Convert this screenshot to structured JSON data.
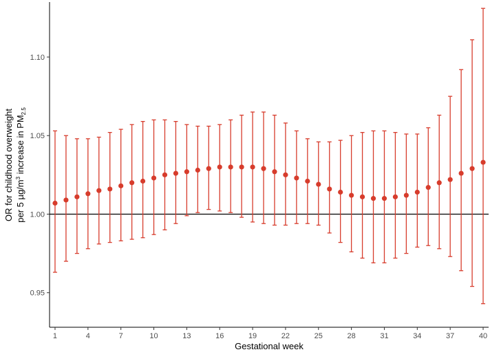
{
  "chart_data": {
    "type": "scatter",
    "title": "",
    "xlabel": "Gestational week",
    "ylabel_line1": "OR for childhood overweight",
    "ylabel_line2": {
      "prefix": "per 5 µg/m",
      "sup": "3",
      "middle": " increase in PM",
      "sub": "2.5"
    },
    "xlim": [
      0.5,
      40.5
    ],
    "ylim": [
      0.928,
      1.135
    ],
    "x_ticks": [
      1,
      4,
      7,
      10,
      13,
      16,
      19,
      22,
      25,
      28,
      31,
      34,
      37,
      40
    ],
    "x_tick_labels": [
      "1",
      "4",
      "7",
      "10",
      "13",
      "16",
      "19",
      "22",
      "25",
      "28",
      "31",
      "34",
      "37",
      "40"
    ],
    "y_ticks": [
      0.95,
      1.0,
      1.05,
      1.1
    ],
    "y_tick_labels": [
      "0.95",
      "1.00",
      "1.05",
      "1.10"
    ],
    "reference_line": 1.0,
    "grid": false,
    "colors": {
      "points": "#d73c2c",
      "error_bars": "#d73c2c",
      "reference_line": "#000000",
      "axis": "#000000"
    },
    "series": [
      {
        "x": [
          1,
          2,
          3,
          4,
          5,
          6,
          7,
          8,
          9,
          10,
          11,
          12,
          13,
          14,
          15,
          16,
          17,
          18,
          19,
          20,
          21,
          22,
          23,
          24,
          25,
          26,
          27,
          28,
          29,
          30,
          31,
          32,
          33,
          34,
          35,
          36,
          37,
          38,
          39,
          40
        ],
        "y": [
          1.007,
          1.009,
          1.011,
          1.013,
          1.015,
          1.016,
          1.018,
          1.02,
          1.021,
          1.023,
          1.025,
          1.026,
          1.027,
          1.028,
          1.029,
          1.03,
          1.03,
          1.03,
          1.03,
          1.029,
          1.027,
          1.025,
          1.023,
          1.021,
          1.019,
          1.016,
          1.014,
          1.012,
          1.011,
          1.01,
          1.01,
          1.011,
          1.012,
          1.014,
          1.017,
          1.02,
          1.022,
          1.026,
          1.029,
          1.033
        ],
        "lower": [
          0.963,
          0.97,
          0.975,
          0.978,
          0.981,
          0.982,
          0.983,
          0.984,
          0.985,
          0.987,
          0.99,
          0.994,
          0.999,
          1.001,
          1.003,
          1.002,
          1.001,
          0.998,
          0.995,
          0.994,
          0.993,
          0.993,
          0.994,
          0.994,
          0.993,
          0.988,
          0.982,
          0.976,
          0.972,
          0.969,
          0.969,
          0.972,
          0.975,
          0.979,
          0.98,
          0.978,
          0.973,
          0.964,
          0.954,
          0.943
        ],
        "upper": [
          1.053,
          1.05,
          1.048,
          1.048,
          1.049,
          1.052,
          1.054,
          1.057,
          1.059,
          1.06,
          1.06,
          1.059,
          1.057,
          1.056,
          1.056,
          1.057,
          1.06,
          1.063,
          1.065,
          1.065,
          1.063,
          1.058,
          1.053,
          1.048,
          1.046,
          1.046,
          1.047,
          1.05,
          1.052,
          1.053,
          1.053,
          1.052,
          1.051,
          1.051,
          1.055,
          1.063,
          1.075,
          1.092,
          1.111,
          1.131
        ]
      }
    ]
  }
}
